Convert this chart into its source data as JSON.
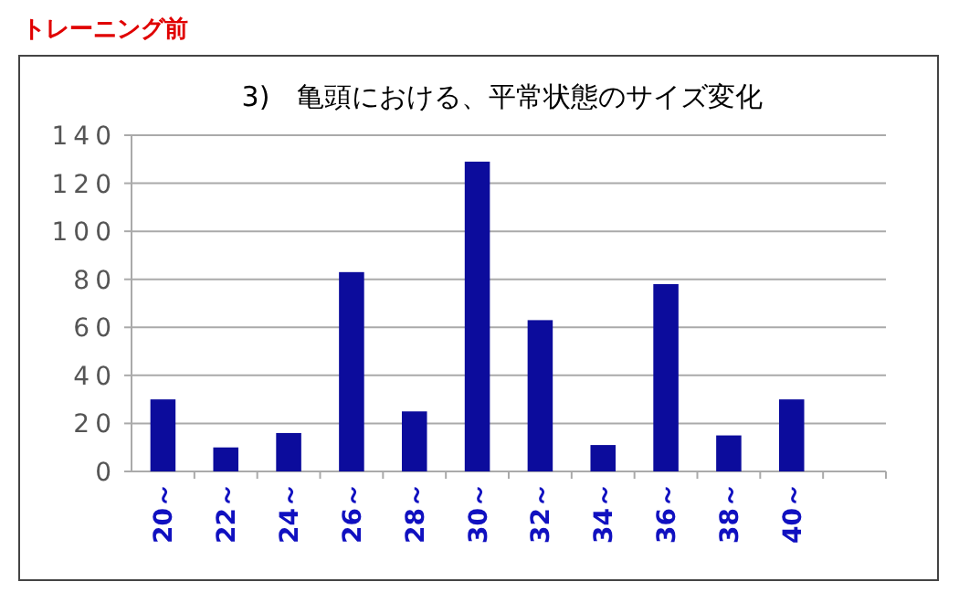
{
  "chart_data": {
    "type": "bar",
    "title": "3)　亀頭における、平常状態のサイズ変化",
    "subtitle": "トレーニング前",
    "categories": [
      "20～",
      "22～",
      "24～",
      "26～",
      "28～",
      "30～",
      "32～",
      "34～",
      "36～",
      "38～",
      "40～",
      null
    ],
    "values": [
      30,
      10,
      16,
      83,
      25,
      129,
      63,
      11,
      78,
      15,
      30,
      null
    ],
    "color": "#0c0c9c",
    "ylim": [
      0,
      140
    ],
    "yticks": [
      0,
      20,
      40,
      60,
      80,
      100,
      120,
      140
    ],
    "grid": "y"
  }
}
